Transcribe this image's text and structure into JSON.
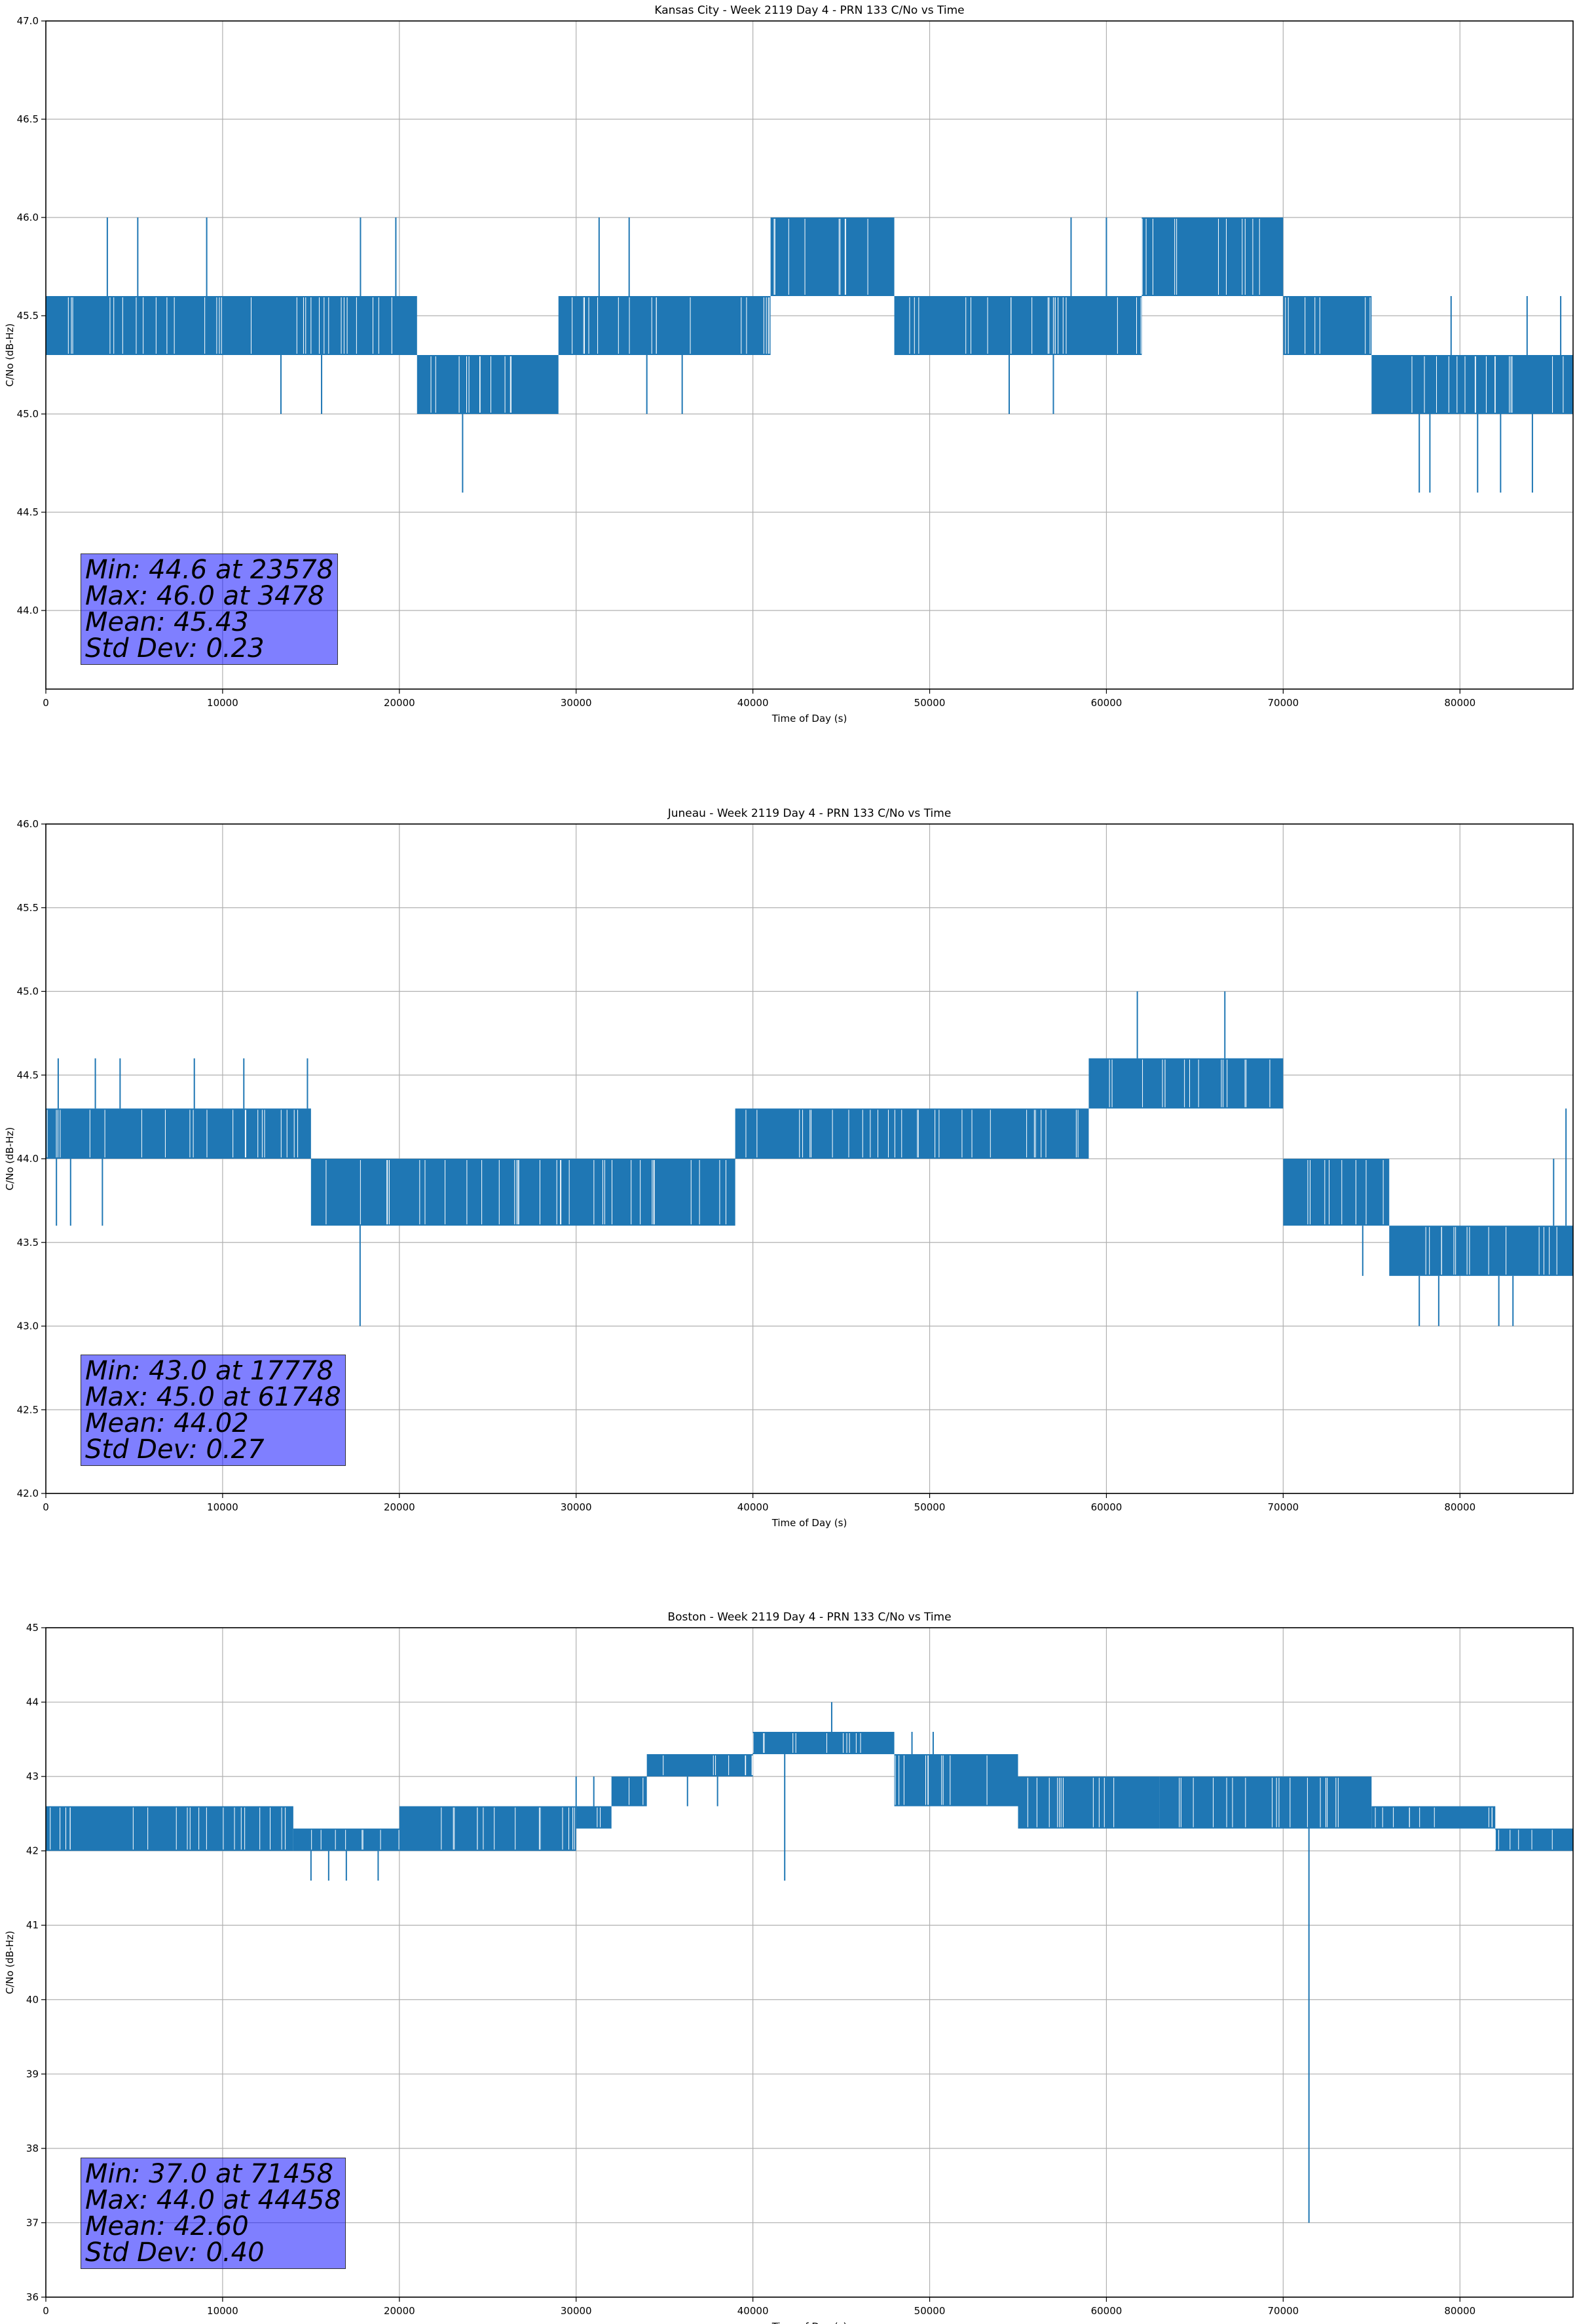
{
  "chart_data": [
    {
      "type": "line",
      "title": "Kansas City - Week 2119 Day 4 - PRN 133 C/No vs Time",
      "xlabel": "Time of Day (s)",
      "ylabel": "C/No (dB-Hz)",
      "xlim": [
        0,
        86400
      ],
      "ylim": [
        43.6,
        47.0
      ],
      "xticks": [
        0,
        10000,
        20000,
        30000,
        40000,
        50000,
        60000,
        70000,
        80000
      ],
      "yticks": [
        44.0,
        44.5,
        45.0,
        45.5,
        46.0,
        46.5,
        47.0
      ],
      "ytick_labels": [
        "44.0",
        "44.5",
        "45.0",
        "45.5",
        "46.0",
        "46.5",
        "47.0"
      ],
      "grid": true,
      "color": "#1f77b4",
      "bands": [
        {
          "x0": 0,
          "x1": 21000,
          "lo": 45.3,
          "hi": 45.6
        },
        {
          "x0": 21000,
          "x1": 29000,
          "lo": 45.0,
          "hi": 45.3
        },
        {
          "x0": 29000,
          "x1": 41000,
          "lo": 45.3,
          "hi": 45.6
        },
        {
          "x0": 41000,
          "x1": 48000,
          "lo": 45.6,
          "hi": 46.0
        },
        {
          "x0": 48000,
          "x1": 62000,
          "lo": 45.3,
          "hi": 45.6
        },
        {
          "x0": 62000,
          "x1": 70000,
          "lo": 45.6,
          "hi": 46.0
        },
        {
          "x0": 70000,
          "x1": 75000,
          "lo": 45.3,
          "hi": 45.6
        },
        {
          "x0": 75000,
          "x1": 86400,
          "lo": 45.0,
          "hi": 45.3
        }
      ],
      "spikes": [
        {
          "x": 23578,
          "y0": 45.3,
          "y1": 44.6
        },
        {
          "x": 3478,
          "y0": 45.6,
          "y1": 46.0
        },
        {
          "x": 5200,
          "y0": 45.6,
          "y1": 46.0
        },
        {
          "x": 9100,
          "y0": 45.6,
          "y1": 46.0
        },
        {
          "x": 17800,
          "y0": 45.6,
          "y1": 46.0
        },
        {
          "x": 19800,
          "y0": 45.6,
          "y1": 46.0
        },
        {
          "x": 31300,
          "y0": 45.6,
          "y1": 46.0
        },
        {
          "x": 33000,
          "y0": 45.6,
          "y1": 46.0
        },
        {
          "x": 58000,
          "y0": 45.6,
          "y1": 46.0
        },
        {
          "x": 60000,
          "y0": 45.6,
          "y1": 46.0
        },
        {
          "x": 13300,
          "y0": 45.3,
          "y1": 45.0
        },
        {
          "x": 15600,
          "y0": 45.3,
          "y1": 45.0
        },
        {
          "x": 34000,
          "y0": 45.3,
          "y1": 45.0
        },
        {
          "x": 36000,
          "y0": 45.3,
          "y1": 45.0
        },
        {
          "x": 54500,
          "y0": 45.3,
          "y1": 45.0
        },
        {
          "x": 57000,
          "y0": 45.3,
          "y1": 45.0
        },
        {
          "x": 77700,
          "y0": 45.0,
          "y1": 44.6
        },
        {
          "x": 78300,
          "y0": 45.0,
          "y1": 44.6
        },
        {
          "x": 81000,
          "y0": 45.0,
          "y1": 44.6
        },
        {
          "x": 82300,
          "y0": 45.0,
          "y1": 44.6
        },
        {
          "x": 84100,
          "y0": 45.0,
          "y1": 44.6
        },
        {
          "x": 79500,
          "y0": 45.3,
          "y1": 45.6
        },
        {
          "x": 83800,
          "y0": 45.3,
          "y1": 45.6
        },
        {
          "x": 85700,
          "y0": 45.3,
          "y1": 45.6
        }
      ],
      "stats": {
        "min": "Min: 44.6 at 23578",
        "max": "Max: 46.0 at 3478",
        "mean": "Mean: 45.43",
        "std": "Std Dev: 0.23"
      }
    },
    {
      "type": "line",
      "title": "Juneau - Week 2119 Day 4 - PRN 133 C/No vs Time",
      "xlabel": "Time of Day (s)",
      "ylabel": "C/No (dB-Hz)",
      "xlim": [
        0,
        86400
      ],
      "ylim": [
        42.0,
        46.0
      ],
      "xticks": [
        0,
        10000,
        20000,
        30000,
        40000,
        50000,
        60000,
        70000,
        80000
      ],
      "yticks": [
        42.0,
        42.5,
        43.0,
        43.5,
        44.0,
        44.5,
        45.0,
        45.5,
        46.0
      ],
      "ytick_labels": [
        "42.0",
        "42.5",
        "43.0",
        "43.5",
        "44.0",
        "44.5",
        "45.0",
        "45.5",
        "46.0"
      ],
      "grid": true,
      "color": "#1f77b4",
      "bands": [
        {
          "x0": 0,
          "x1": 15000,
          "lo": 44.0,
          "hi": 44.3
        },
        {
          "x0": 15000,
          "x1": 39000,
          "lo": 43.6,
          "hi": 44.0
        },
        {
          "x0": 39000,
          "x1": 59000,
          "lo": 44.0,
          "hi": 44.3
        },
        {
          "x0": 59000,
          "x1": 70000,
          "lo": 44.3,
          "hi": 44.6
        },
        {
          "x0": 70000,
          "x1": 76000,
          "lo": 43.6,
          "hi": 44.0
        },
        {
          "x0": 76000,
          "x1": 86400,
          "lo": 43.3,
          "hi": 43.6
        }
      ],
      "spikes": [
        {
          "x": 17778,
          "y0": 43.6,
          "y1": 43.0
        },
        {
          "x": 61748,
          "y0": 44.6,
          "y1": 45.0
        },
        {
          "x": 66700,
          "y0": 44.6,
          "y1": 45.0
        },
        {
          "x": 700,
          "y0": 44.3,
          "y1": 44.6
        },
        {
          "x": 2800,
          "y0": 44.3,
          "y1": 44.6
        },
        {
          "x": 4200,
          "y0": 44.3,
          "y1": 44.6
        },
        {
          "x": 8400,
          "y0": 44.3,
          "y1": 44.6
        },
        {
          "x": 11200,
          "y0": 44.3,
          "y1": 44.6
        },
        {
          "x": 14800,
          "y0": 44.3,
          "y1": 44.6
        },
        {
          "x": 600,
          "y0": 44.0,
          "y1": 43.6
        },
        {
          "x": 1400,
          "y0": 44.0,
          "y1": 43.6
        },
        {
          "x": 3200,
          "y0": 44.0,
          "y1": 43.6
        },
        {
          "x": 74500,
          "y0": 43.6,
          "y1": 43.3
        },
        {
          "x": 77700,
          "y0": 43.3,
          "y1": 43.0
        },
        {
          "x": 78800,
          "y0": 43.3,
          "y1": 43.0
        },
        {
          "x": 82200,
          "y0": 43.3,
          "y1": 43.0
        },
        {
          "x": 83000,
          "y0": 43.3,
          "y1": 43.0
        },
        {
          "x": 86000,
          "y0": 43.6,
          "y1": 44.3
        },
        {
          "x": 85300,
          "y0": 43.6,
          "y1": 44.0
        }
      ],
      "stats": {
        "min": "Min: 43.0 at 17778",
        "max": "Max: 45.0 at 61748",
        "mean": "Mean: 44.02",
        "std": "Std Dev: 0.27"
      }
    },
    {
      "type": "line",
      "title": "Boston - Week 2119 Day 4 - PRN 133 C/No vs Time",
      "xlabel": "Time of Day (s)",
      "ylabel": "C/No (dB-Hz)",
      "xlim": [
        0,
        86400
      ],
      "ylim": [
        36,
        45
      ],
      "xticks": [
        0,
        10000,
        20000,
        30000,
        40000,
        50000,
        60000,
        70000,
        80000
      ],
      "yticks": [
        36,
        37,
        38,
        39,
        40,
        41,
        42,
        43,
        44,
        45
      ],
      "ytick_labels": [
        "36",
        "37",
        "38",
        "39",
        "40",
        "41",
        "42",
        "43",
        "44",
        "45"
      ],
      "grid": true,
      "color": "#1f77b4",
      "bands": [
        {
          "x0": 0,
          "x1": 14000,
          "lo": 42.0,
          "hi": 42.6
        },
        {
          "x0": 14000,
          "x1": 20000,
          "lo": 42.0,
          "hi": 42.3
        },
        {
          "x0": 20000,
          "x1": 30000,
          "lo": 42.0,
          "hi": 42.6
        },
        {
          "x0": 30000,
          "x1": 32000,
          "lo": 42.3,
          "hi": 42.6
        },
        {
          "x0": 32000,
          "x1": 34000,
          "lo": 42.6,
          "hi": 43.0
        },
        {
          "x0": 34000,
          "x1": 40000,
          "lo": 43.0,
          "hi": 43.3
        },
        {
          "x0": 40000,
          "x1": 48000,
          "lo": 43.3,
          "hi": 43.6
        },
        {
          "x0": 48000,
          "x1": 55000,
          "lo": 42.6,
          "hi": 43.3
        },
        {
          "x0": 55000,
          "x1": 63000,
          "lo": 42.3,
          "hi": 43.0
        },
        {
          "x0": 63000,
          "x1": 75000,
          "lo": 42.3,
          "hi": 43.0
        },
        {
          "x0": 75000,
          "x1": 82000,
          "lo": 42.3,
          "hi": 42.6
        },
        {
          "x0": 82000,
          "x1": 86400,
          "lo": 42.0,
          "hi": 42.3
        }
      ],
      "spikes": [
        {
          "x": 71458,
          "y0": 42.6,
          "y1": 37.0
        },
        {
          "x": 44458,
          "y0": 43.6,
          "y1": 44.0
        },
        {
          "x": 41800,
          "y0": 43.3,
          "y1": 41.6
        },
        {
          "x": 15000,
          "y0": 42.0,
          "y1": 41.6
        },
        {
          "x": 16000,
          "y0": 42.0,
          "y1": 41.6
        },
        {
          "x": 17000,
          "y0": 42.0,
          "y1": 41.6
        },
        {
          "x": 18800,
          "y0": 42.0,
          "y1": 41.6
        },
        {
          "x": 36300,
          "y0": 43.0,
          "y1": 42.6
        },
        {
          "x": 38000,
          "y0": 43.0,
          "y1": 42.6
        },
        {
          "x": 30000,
          "y0": 42.6,
          "y1": 43.0
        },
        {
          "x": 31000,
          "y0": 42.6,
          "y1": 43.0
        },
        {
          "x": 49000,
          "y0": 43.3,
          "y1": 43.6
        },
        {
          "x": 50200,
          "y0": 43.3,
          "y1": 43.6
        }
      ],
      "stats": {
        "min": "Min: 37.0 at 71458",
        "max": "Max: 44.0 at 44458",
        "mean": "Mean: 42.60",
        "std": "Std Dev: 0.40"
      }
    }
  ]
}
